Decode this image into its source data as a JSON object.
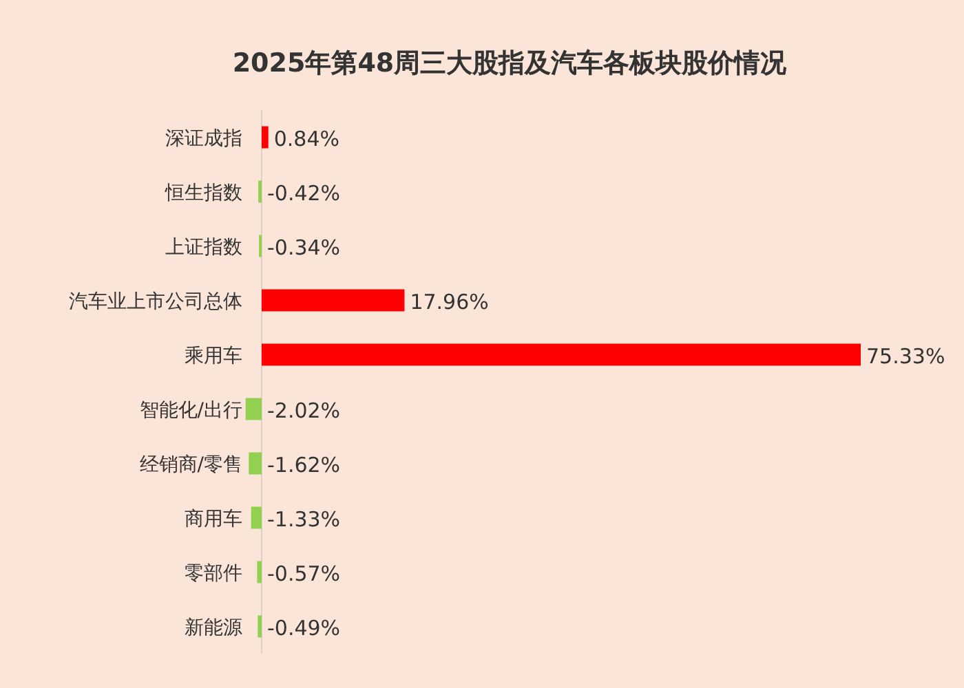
{
  "chart_data": {
    "type": "bar",
    "orientation": "horizontal",
    "title": "2025年第48周三大股指及汽车各板块股价情况",
    "categories": [
      "深证成指",
      "恒生指数",
      "上证指数",
      "汽车业上市公司总体",
      "乘用车",
      "智能化/出行",
      "经销商/零售",
      "商用车",
      "零部件",
      "新能源"
    ],
    "values": [
      0.84,
      -0.42,
      -0.34,
      17.96,
      75.33,
      -2.02,
      -1.62,
      -1.33,
      -0.57,
      -0.49
    ],
    "colors": [
      "#ff0000",
      "#92d050",
      "#92d050",
      "#ff0000",
      "#ff0000",
      "#92d050",
      "#92d050",
      "#92d050",
      "#92d050",
      "#92d050"
    ],
    "value_labels": [
      "0.84%",
      "-0.42%",
      "-0.34%",
      "17.96%",
      "75.33%",
      "-2.02%",
      "-1.62%",
      "-1.33%",
      "-0.57%",
      "-0.49%"
    ]
  }
}
